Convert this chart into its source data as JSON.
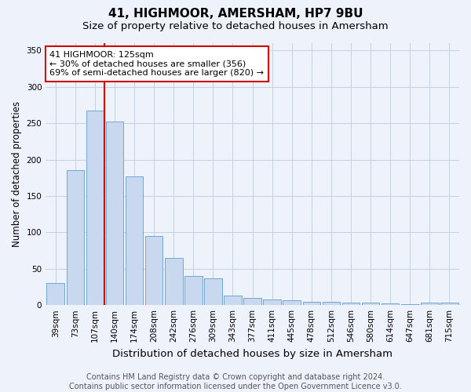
{
  "title": "41, HIGHMOOR, AMERSHAM, HP7 9BU",
  "subtitle": "Size of property relative to detached houses in Amersham",
  "xlabel": "Distribution of detached houses by size in Amersham",
  "ylabel": "Number of detached properties",
  "categories": [
    "39sqm",
    "73sqm",
    "107sqm",
    "140sqm",
    "174sqm",
    "208sqm",
    "242sqm",
    "276sqm",
    "309sqm",
    "343sqm",
    "377sqm",
    "411sqm",
    "445sqm",
    "478sqm",
    "512sqm",
    "546sqm",
    "580sqm",
    "614sqm",
    "647sqm",
    "681sqm",
    "715sqm"
  ],
  "values": [
    30,
    185,
    267,
    252,
    177,
    95,
    65,
    40,
    37,
    13,
    10,
    8,
    7,
    5,
    4,
    3,
    3,
    2,
    1,
    3,
    3
  ],
  "bar_color": "#c8d8ee",
  "bar_edge_color": "#6fa8d0",
  "vline_color": "#cc0000",
  "vline_pos": 2.5,
  "annotation_text": "41 HIGHMOOR: 125sqm\n← 30% of detached houses are smaller (356)\n69% of semi-detached houses are larger (820) →",
  "annotation_box_facecolor": "#ffffff",
  "annotation_box_edgecolor": "#cc0000",
  "ylim": [
    0,
    360
  ],
  "yticks": [
    0,
    50,
    100,
    150,
    200,
    250,
    300,
    350
  ],
  "background_color": "#eef2fb",
  "grid_color": "#c5d0e0",
  "title_fontsize": 11,
  "subtitle_fontsize": 9.5,
  "xlabel_fontsize": 9.5,
  "ylabel_fontsize": 8.5,
  "tick_fontsize": 7.5,
  "annot_fontsize": 8,
  "footer_fontsize": 7,
  "footer": "Contains HM Land Registry data © Crown copyright and database right 2024.\nContains public sector information licensed under the Open Government Licence v3.0."
}
